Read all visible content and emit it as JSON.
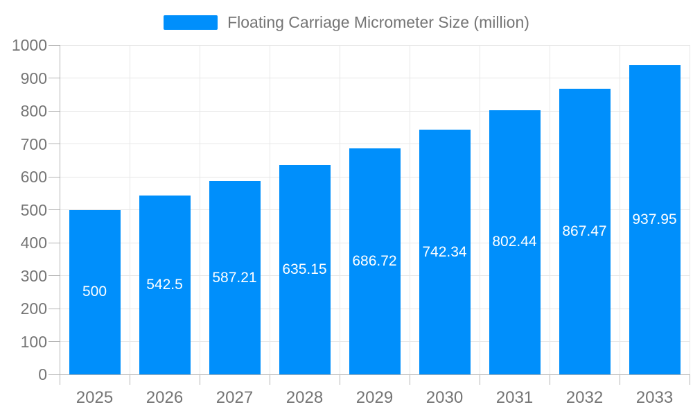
{
  "chart_data": {
    "type": "bar",
    "title": "Floating Carriage Micrometer Size (million)",
    "categories": [
      "2025",
      "2026",
      "2027",
      "2028",
      "2029",
      "2030",
      "2031",
      "2032",
      "2033"
    ],
    "series": [
      {
        "name": "Floating Carriage Micrometer Size (million)",
        "values": [
          500,
          542.5,
          587.21,
          635.15,
          686.72,
          742.34,
          802.44,
          867.47,
          937.95
        ]
      }
    ],
    "value_labels": [
      "500",
      "542.5",
      "587.21",
      "635.15",
      "686.72",
      "742.34",
      "802.44",
      "867.47",
      "937.95"
    ],
    "xlabel": "",
    "ylabel": "",
    "ylim": [
      0,
      1000
    ],
    "ytick_labels": [
      "0",
      "100",
      "200",
      "300",
      "400",
      "500",
      "600",
      "700",
      "800",
      "900",
      "1000"
    ],
    "grid": "horizontal-and-vertical",
    "legend_position": "top-center",
    "colors": {
      "bar": "#008FFB",
      "axis_label": "#757575",
      "legend_text": "#757575",
      "gridline": "#e7e7e7",
      "axis_line": "#b3b3b3",
      "value_label": "#ffffff",
      "background": "#ffffff"
    }
  }
}
